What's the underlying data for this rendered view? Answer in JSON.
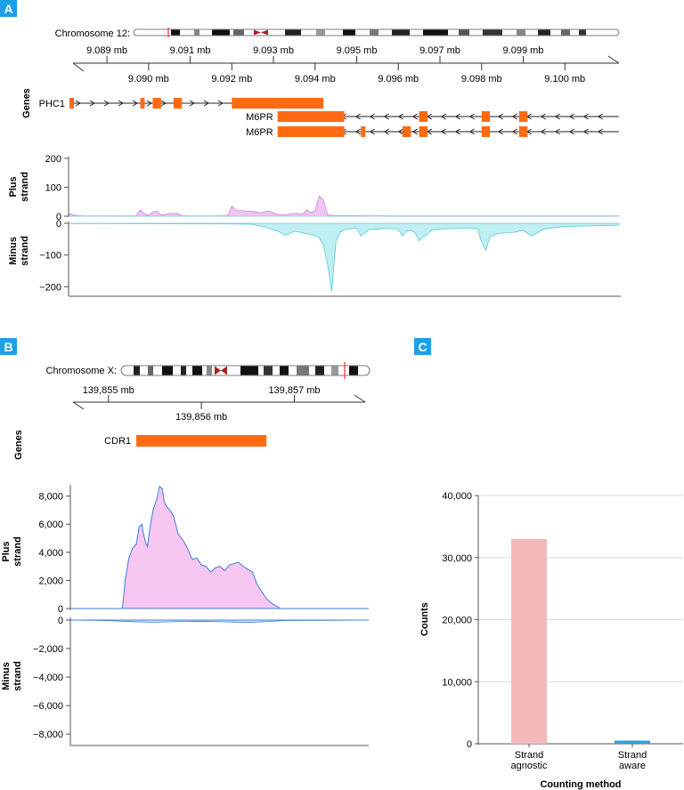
{
  "panels": {
    "A": {
      "letter": "A",
      "chromosome_label": "Chromosome 12:",
      "genes_label": "Genes",
      "plus_strand_label": [
        "Plus",
        "strand"
      ],
      "minus_strand_label": [
        "Minus",
        "strand"
      ],
      "colors": {
        "plus_fill": "#f2c4f2",
        "plus_line": "#c78ad6",
        "minus_fill": "#bfeff2",
        "minus_line": "#5ccbd8",
        "gene": "#ff6a13"
      }
    },
    "B": {
      "letter": "B",
      "chromosome_label": "Chromosome X:",
      "genes_label": "Genes",
      "plus_strand_label": [
        "Plus",
        "strand"
      ],
      "minus_strand_label": [
        "Minus",
        "strand"
      ],
      "colors": {
        "plus_fill": "#f7c6f1",
        "plus_line": "#3f7fd9",
        "minus_line": "#3f7fd9",
        "gene": "#ff6a13"
      }
    },
    "C": {
      "letter": "C",
      "colors": {
        "strand_agnostic": "#f4b8ba",
        "strand_aware": "#2f9ee0",
        "grid": "#d9d9d9"
      }
    },
    "label_color": "#1ea0e8"
  },
  "chart_data": [
    {
      "type": "area",
      "panel": "A",
      "region_ticks_top": [
        "9.089 mb",
        "9.091 mb",
        "9.093 mb",
        "9.095 mb",
        "9.097 mb",
        "9.099 mb"
      ],
      "region_ticks_top_values": [
        9.089,
        9.091,
        9.093,
        9.095,
        9.097,
        9.099
      ],
      "region_ticks_bottom": [
        "9.090 mb",
        "9.092 mb",
        "9.094 mb",
        "9.096 mb",
        "9.098 mb",
        "9.100 mb"
      ],
      "region_ticks_bottom_values": [
        9.09,
        9.092,
        9.094,
        9.096,
        9.098,
        9.1
      ],
      "xlim": [
        9.0881,
        9.1013
      ],
      "genes": [
        {
          "name": "PHC1",
          "strand": "+",
          "start": 9.0881,
          "end": 9.0941,
          "exons": [
            [
              9.0881,
              9.0882
            ],
            [
              9.0898,
              9.0899
            ],
            [
              9.0901,
              9.0903
            ],
            [
              9.0906,
              9.0908
            ],
            [
              9.092,
              9.0942
            ]
          ]
        },
        {
          "name": "M6PR",
          "strand": "-",
          "start": 9.0931,
          "end": 9.1013,
          "exons": [
            [
              9.0931,
              9.0947
            ],
            [
              9.0965,
              9.0967
            ],
            [
              9.098,
              9.0982
            ],
            [
              9.0989,
              9.0991
            ]
          ]
        },
        {
          "name": "M6PR",
          "strand": "-",
          "start": 9.0931,
          "end": 9.1013,
          "exons": [
            [
              9.0931,
              9.0947
            ],
            [
              9.0951,
              9.0952
            ],
            [
              9.0961,
              9.0963
            ],
            [
              9.0965,
              9.0967
            ],
            [
              9.098,
              9.0982
            ],
            [
              9.0989,
              9.0991
            ]
          ]
        }
      ],
      "plus_ticks": [
        0,
        100,
        200
      ],
      "plus_ylim": [
        0,
        200
      ],
      "plus_x": [
        9.0881,
        9.0883,
        9.0885,
        9.0897,
        9.0898,
        9.0899,
        9.09,
        9.0901,
        9.0902,
        9.0903,
        9.0905,
        9.0907,
        9.0908,
        9.091,
        9.0915,
        9.0919,
        9.092,
        9.0921,
        9.0923,
        9.0925,
        9.0927,
        9.0929,
        9.0931,
        9.0933,
        9.0935,
        9.0937,
        9.0938,
        9.0939,
        9.094,
        9.0941,
        9.0942,
        9.0943,
        9.0945,
        9.096,
        9.098,
        9.1,
        9.1013
      ],
      "plus_y": [
        8,
        2,
        1,
        1,
        22,
        8,
        3,
        14,
        18,
        4,
        9,
        10,
        2,
        1,
        1,
        2,
        35,
        20,
        18,
        16,
        12,
        18,
        6,
        5,
        10,
        8,
        22,
        12,
        20,
        70,
        55,
        5,
        2,
        1,
        1,
        1,
        1
      ],
      "minus_ticks": [
        0,
        -100,
        -200
      ],
      "minus_ylim": [
        -230,
        0
      ],
      "minus_x": [
        9.0881,
        9.092,
        9.0925,
        9.0928,
        9.0931,
        9.0933,
        9.0935,
        9.0937,
        9.0939,
        9.0941,
        9.0942,
        9.0943,
        9.0944,
        9.0945,
        9.0946,
        9.0947,
        9.095,
        9.0951,
        9.0953,
        9.0955,
        9.0958,
        9.096,
        9.0961,
        9.0962,
        9.0963,
        9.0964,
        9.0965,
        9.0966,
        9.0967,
        9.0968,
        9.097,
        9.0975,
        9.0979,
        9.098,
        9.0981,
        9.0982,
        9.0984,
        9.0988,
        9.099,
        9.0992,
        9.0995,
        9.1,
        9.1013
      ],
      "minus_y": [
        -1,
        -2,
        -3,
        -12,
        -25,
        -38,
        -25,
        -30,
        -35,
        -45,
        -70,
        -130,
        -215,
        -60,
        -28,
        -20,
        -15,
        -40,
        -20,
        -18,
        -15,
        -20,
        -40,
        -25,
        -22,
        -30,
        -55,
        -42,
        -35,
        -22,
        -18,
        -15,
        -16,
        -60,
        -85,
        -42,
        -32,
        -28,
        -22,
        -40,
        -18,
        -10,
        -6
      ]
    },
    {
      "type": "area",
      "panel": "B",
      "region_ticks_top": [
        "139,855 mb",
        "139,857 mb"
      ],
      "region_ticks_top_values": [
        139855,
        139857
      ],
      "region_ticks_bottom": [
        "139,856 mb"
      ],
      "region_ticks_bottom_values": [
        139856
      ],
      "xlim": [
        139854.6,
        139857.8
      ],
      "gene": {
        "name": "CDR1",
        "start": 139855.3,
        "end": 139856.7
      },
      "plus_ticks": [
        0,
        2000,
        4000,
        6000,
        8000
      ],
      "plus_tick_labels": [
        "0",
        "2,000",
        "4,000",
        "6,000",
        "8,000"
      ],
      "plus_ylim": [
        0,
        8800
      ],
      "plus_x": [
        139855.15,
        139855.18,
        139855.22,
        139855.26,
        139855.3,
        139855.33,
        139855.36,
        139855.38,
        139855.4,
        139855.42,
        139855.45,
        139855.48,
        139855.52,
        139855.55,
        139855.58,
        139855.6,
        139855.62,
        139855.66,
        139855.7,
        139855.75,
        139855.8,
        139855.85,
        139855.9,
        139855.95,
        139856.0,
        139856.05,
        139856.1,
        139856.15,
        139856.2,
        139856.25,
        139856.3,
        139856.35,
        139856.4,
        139856.45,
        139856.5,
        139856.55,
        139856.6,
        139856.65,
        139856.7,
        139856.75,
        139856.85
      ],
      "plus_y": [
        0,
        2000,
        3600,
        4300,
        4600,
        5800,
        6000,
        5200,
        4700,
        4400,
        5900,
        7000,
        7800,
        8700,
        8500,
        7600,
        7300,
        7000,
        6600,
        5300,
        4900,
        4300,
        3500,
        3600,
        3100,
        3000,
        2600,
        2900,
        3000,
        2700,
        3100,
        3200,
        3300,
        3000,
        2800,
        2600,
        1700,
        1200,
        700,
        400,
        0
      ],
      "minus_ticks": [
        0,
        -2000,
        -4000,
        -6000,
        -8000
      ],
      "minus_tick_labels": [
        "0",
        "−2,000",
        "−4,000",
        "−6,000",
        "−8,000"
      ],
      "minus_ylim": [
        -8800,
        0
      ],
      "minus_x": [
        139854.6,
        139855.0,
        139855.3,
        139855.5,
        139855.8,
        139856.0,
        139856.3,
        139856.5,
        139856.7,
        139856.9,
        139857.8
      ],
      "minus_y": [
        0,
        -40,
        -120,
        -150,
        -100,
        -90,
        -130,
        -160,
        -110,
        -30,
        0
      ]
    },
    {
      "type": "bar",
      "panel": "C",
      "categories": [
        [
          "Strand",
          "agnostic"
        ],
        [
          "Strand",
          "aware"
        ]
      ],
      "values": [
        33000,
        500
      ],
      "xlabel": "Counting method",
      "ylabel": "Counts",
      "yticks": [
        0,
        10000,
        20000,
        30000,
        40000
      ],
      "ytick_labels": [
        "0",
        "10,000",
        "20,000",
        "30,000",
        "40,000"
      ],
      "ylim": [
        0,
        40000
      ],
      "grid": true
    }
  ]
}
